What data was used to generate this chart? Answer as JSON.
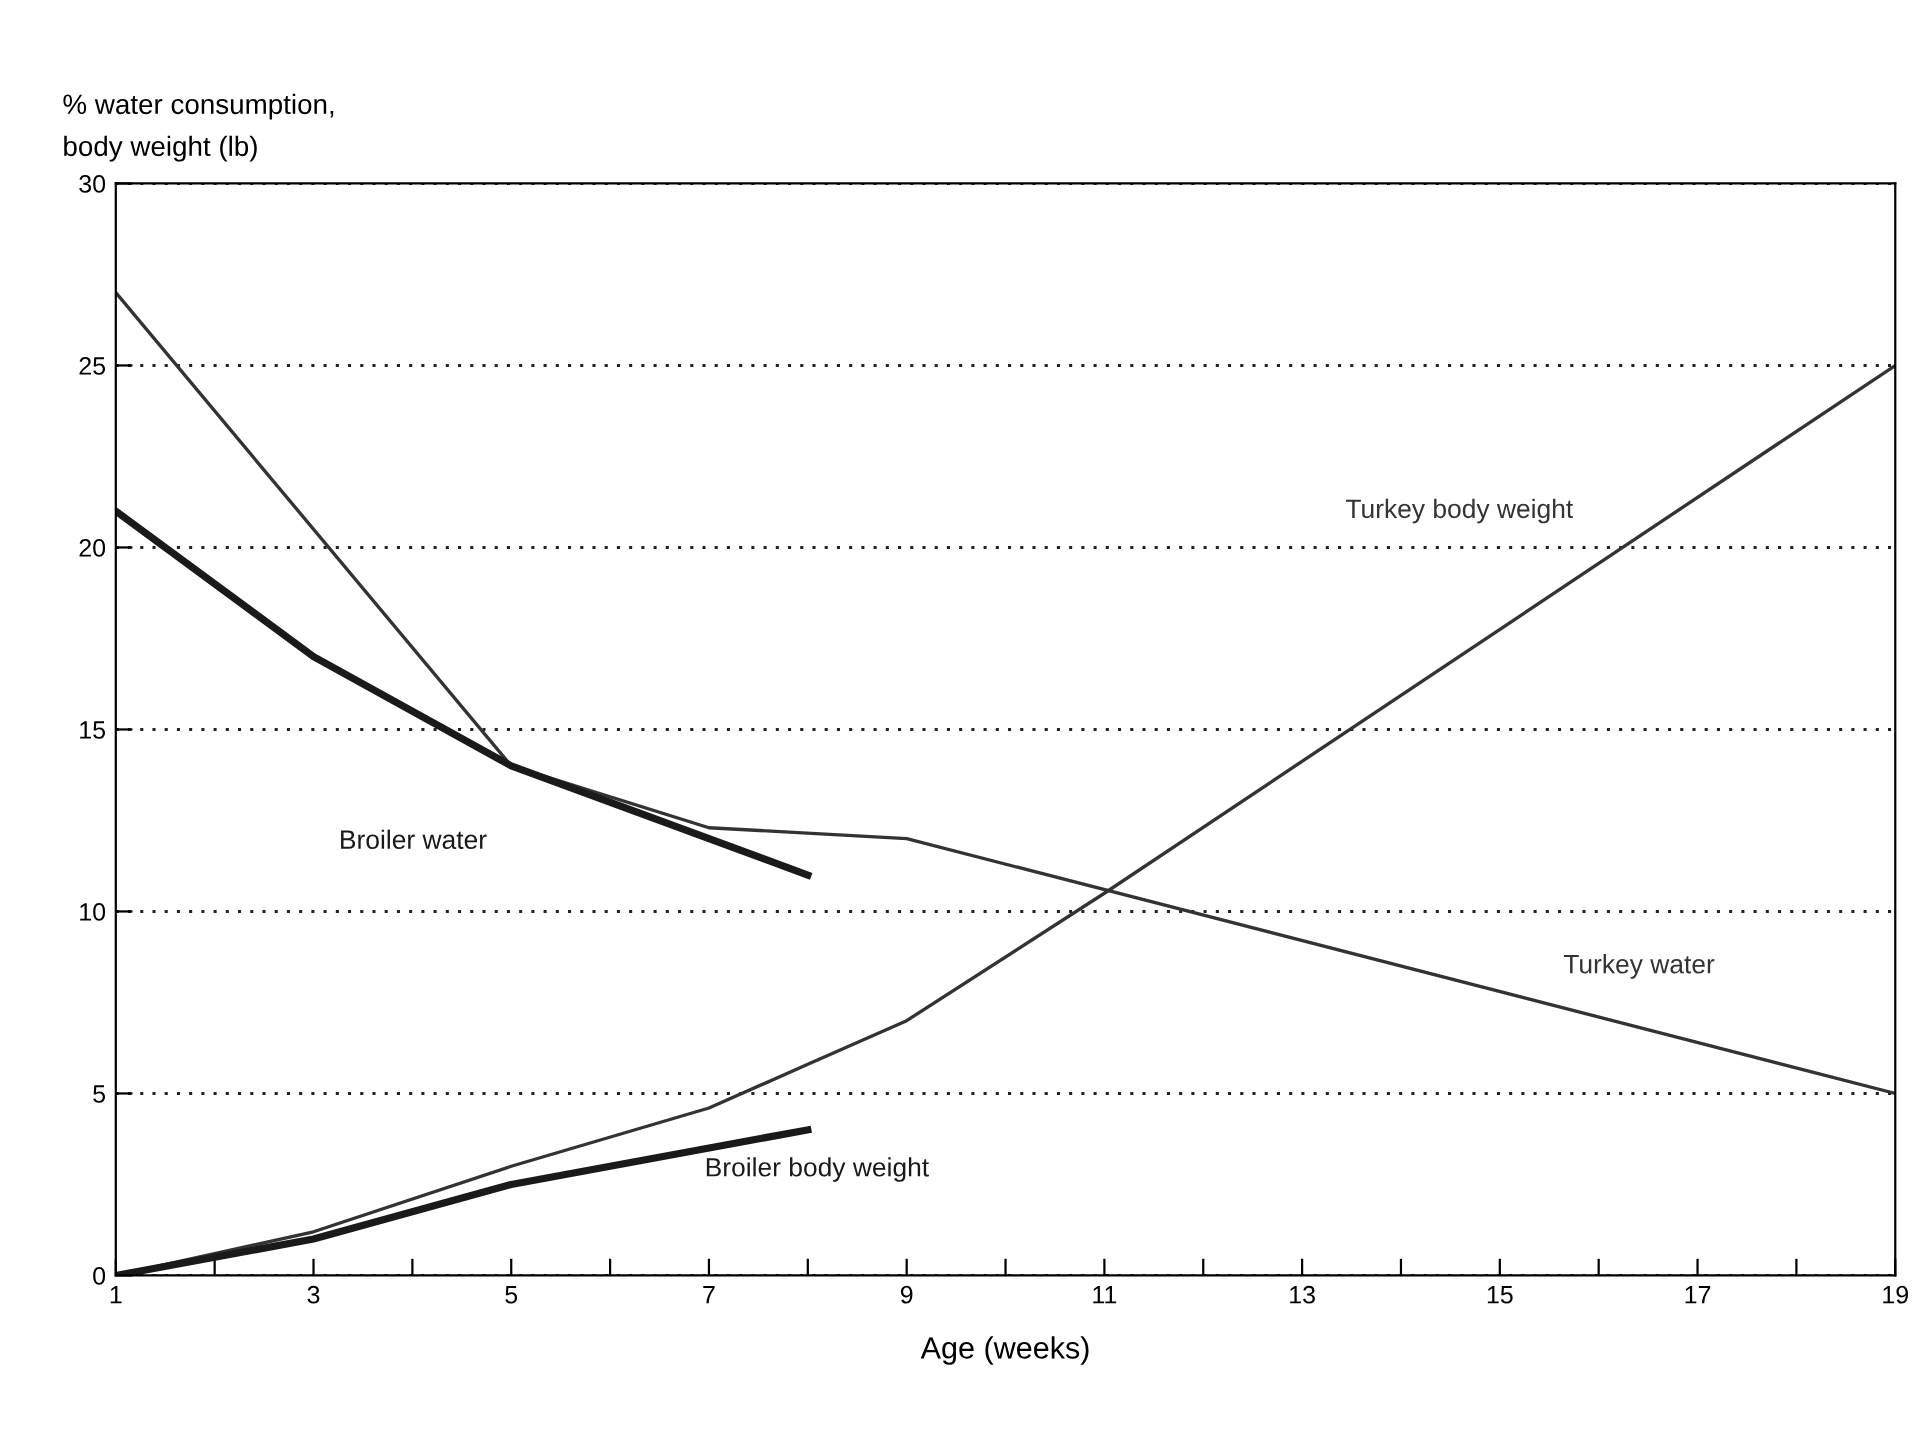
{
  "chart_data": {
    "type": "line",
    "ylabel": "% water consumption,\nbody weight (lb)",
    "xlabel": "Age (weeks)",
    "xlim": [
      1,
      19
    ],
    "xticks": [
      1,
      {
        "value": 2,
        "label": null
      },
      3,
      {
        "value": 4,
        "label": null
      },
      5,
      {
        "value": 6,
        "label": null
      },
      7,
      {
        "value": 8,
        "label": null
      },
      9,
      {
        "value": 10,
        "label": null
      },
      11,
      {
        "value": 12,
        "label": null
      },
      13,
      {
        "value": 14,
        "label": null
      },
      15,
      {
        "value": 16,
        "label": null
      },
      17,
      {
        "value": 18,
        "label": null
      },
      19
    ],
    "ylim": [
      0,
      30
    ],
    "yticks": [
      0,
      5,
      10,
      15,
      20,
      25,
      30
    ],
    "grid": "y",
    "line_style": "solid",
    "series": [
      {
        "name": "Turkey water",
        "color": "#333333",
        "x": [
          1,
          5,
          7,
          9,
          19
        ],
        "values": [
          27,
          14,
          12.3,
          12,
          5
        ]
      },
      {
        "name": "Broiler water",
        "color": "#1a1a1a",
        "x": [
          1,
          3,
          5,
          8
        ],
        "values": [
          21,
          17,
          14,
          11
        ]
      },
      {
        "name": "Turkey body weight",
        "color": "#333333",
        "x": [
          1,
          3,
          5,
          7,
          8,
          9,
          11,
          19
        ],
        "values": [
          0,
          1.2,
          3,
          4.6,
          5.8,
          7,
          10.5,
          25
        ]
      },
      {
        "name": "Broiler body weight",
        "color": "#1a1a1a",
        "x": [
          1,
          3,
          5,
          8
        ],
        "values": [
          0,
          1,
          2.5,
          4
        ]
      }
    ]
  }
}
